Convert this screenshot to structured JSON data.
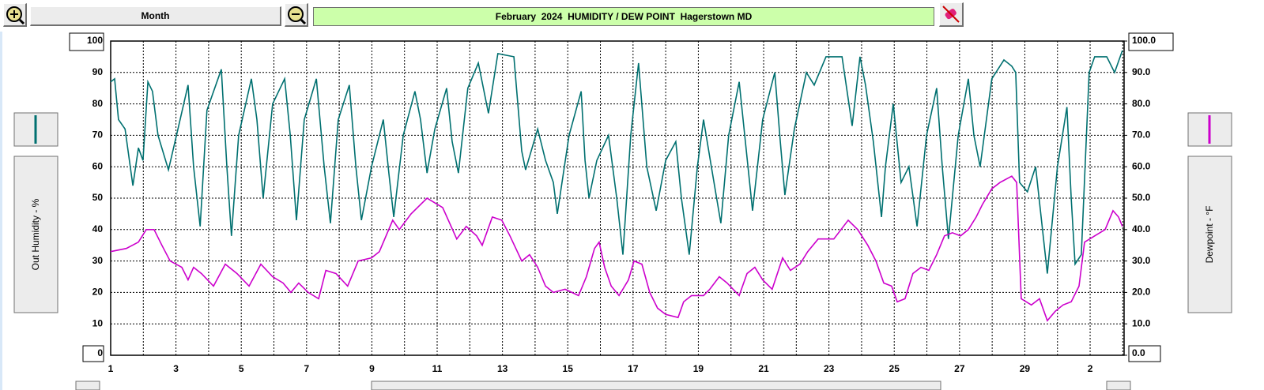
{
  "toolbar": {
    "period": "Month"
  },
  "chart_data": {
    "type": "line",
    "title": "February  2024  HUMIDITY / DEW POINT  Hagerstown MD",
    "ylabel": "Out Humidity - %",
    "y2label": "Dewpoint - °F",
    "xlim": [
      1,
      32.04
    ],
    "xticks": [
      1,
      3,
      5,
      7,
      9,
      11,
      13,
      15,
      17,
      19,
      21,
      23,
      25,
      27,
      29,
      {
        "value": 31,
        "label": "2"
      }
    ],
    "xminor": [
      2,
      4,
      6,
      8,
      10,
      12,
      14,
      16,
      18,
      20,
      22,
      24,
      26,
      28,
      30,
      32
    ],
    "ylim": [
      0,
      100
    ],
    "yticks": [
      0,
      10,
      20,
      30,
      40,
      50,
      60,
      70,
      80,
      90,
      100
    ],
    "y2lim": [
      0,
      100
    ],
    "y2ticks": [
      {
        "value": 0,
        "label": "0.0"
      },
      {
        "value": 10,
        "label": "10.0"
      },
      {
        "value": 20,
        "label": "20.0"
      },
      {
        "value": 30,
        "label": "30.0"
      },
      {
        "value": 40,
        "label": "40.0"
      },
      {
        "value": 50,
        "label": "50.0"
      },
      {
        "value": 60,
        "label": "60.0"
      },
      {
        "value": 70,
        "label": "70.0"
      },
      {
        "value": 80,
        "label": "80.0"
      },
      {
        "value": 90,
        "label": "90.0"
      },
      {
        "value": 100,
        "label": "100.0"
      }
    ],
    "grid": true,
    "series": [
      {
        "color": "#007070",
        "axis": "y",
        "x": [
          1.0,
          1.12,
          1.24,
          1.44,
          1.68,
          1.85,
          1.99,
          2.14,
          2.28,
          2.45,
          2.77,
          3.06,
          3.37,
          3.54,
          3.74,
          3.95,
          4.39,
          4.56,
          4.7,
          4.92,
          5.31,
          5.48,
          5.67,
          5.96,
          6.33,
          6.5,
          6.69,
          6.93,
          7.3,
          7.54,
          7.73,
          7.97,
          8.31,
          8.51,
          8.68,
          8.99,
          9.35,
          9.52,
          9.67,
          9.96,
          10.32,
          10.49,
          10.69,
          10.93,
          11.29,
          11.46,
          11.65,
          11.94,
          12.26,
          12.57,
          12.86,
          13.35,
          13.59,
          13.71,
          14.08,
          14.32,
          14.56,
          14.68,
          15.04,
          15.41,
          15.53,
          15.65,
          15.89,
          16.25,
          16.5,
          16.69,
          16.93,
          17.17,
          17.42,
          17.71,
          18.0,
          18.31,
          18.48,
          18.72,
          18.97,
          19.16,
          19.4,
          19.69,
          19.93,
          20.25,
          20.42,
          20.66,
          20.97,
          21.34,
          21.51,
          21.65,
          21.94,
          22.31,
          22.55,
          22.91,
          23.4,
          23.64,
          23.71,
          23.95,
          24.12,
          24.36,
          24.61,
          24.73,
          24.97,
          25.21,
          25.45,
          25.7,
          25.99,
          26.3,
          26.47,
          26.66,
          26.96,
          27.27,
          27.44,
          27.63,
          27.99,
          28.36,
          28.6,
          28.72,
          28.84,
          29.08,
          29.33,
          29.69,
          30.0,
          30.29,
          30.42,
          30.54,
          30.73,
          30.97,
          31.14,
          31.51,
          31.75,
          31.99
        ],
        "values": [
          87,
          88,
          75,
          72,
          54,
          66,
          62,
          87,
          84,
          70,
          59,
          72,
          86,
          60,
          41,
          78,
          91,
          60,
          38,
          70,
          88,
          75,
          50,
          80,
          88,
          70,
          43,
          75,
          88,
          60,
          42,
          75,
          86,
          60,
          43,
          60,
          75,
          58,
          44,
          70,
          84,
          75,
          58,
          72,
          85,
          68,
          58,
          85,
          93,
          77,
          96,
          95,
          65,
          59,
          72,
          62,
          55,
          45,
          70,
          84,
          62,
          50,
          62,
          70,
          50,
          32,
          70,
          93,
          60,
          46,
          62,
          68,
          50,
          32,
          60,
          75,
          60,
          42,
          70,
          87,
          70,
          46,
          75,
          90,
          68,
          51,
          72,
          90,
          86,
          95,
          95,
          78,
          73,
          95,
          86,
          68,
          44,
          60,
          80,
          55,
          60,
          41,
          70,
          85,
          60,
          37,
          70,
          88,
          70,
          60,
          88,
          94,
          92,
          90,
          55,
          52,
          60,
          26,
          60,
          79,
          50,
          29,
          32,
          90,
          95,
          95,
          90,
          97
        ]
      },
      {
        "color": "#cc00cc",
        "axis": "y2",
        "x": [
          1.0,
          1.48,
          1.85,
          2.09,
          2.33,
          2.57,
          2.82,
          3.18,
          3.37,
          3.54,
          3.78,
          4.15,
          4.51,
          4.87,
          5.24,
          5.6,
          5.96,
          6.28,
          6.52,
          6.76,
          7.05,
          7.37,
          7.59,
          7.9,
          8.26,
          8.58,
          8.99,
          9.23,
          9.64,
          9.84,
          10.2,
          10.69,
          11.17,
          11.6,
          11.89,
          12.21,
          12.38,
          12.69,
          12.98,
          13.23,
          13.59,
          13.83,
          14.08,
          14.32,
          14.56,
          14.92,
          15.33,
          15.57,
          15.82,
          15.96,
          16.13,
          16.33,
          16.57,
          16.86,
          17.03,
          17.27,
          17.51,
          17.75,
          18.0,
          18.38,
          18.55,
          18.79,
          19.16,
          19.35,
          19.64,
          19.88,
          20.25,
          20.49,
          20.73,
          20.97,
          21.26,
          21.58,
          21.82,
          22.11,
          22.35,
          22.67,
          23.15,
          23.59,
          23.88,
          24.19,
          24.44,
          24.68,
          24.92,
          25.09,
          25.33,
          25.57,
          25.82,
          26.06,
          26.3,
          26.54,
          26.78,
          27.03,
          27.27,
          27.51,
          27.7,
          27.99,
          28.24,
          28.6,
          28.75,
          28.89,
          29.2,
          29.45,
          29.69,
          29.93,
          30.17,
          30.42,
          30.66,
          30.83,
          31.14,
          31.46,
          31.7,
          31.87,
          31.99
        ],
        "values": [
          33,
          34,
          36,
          40,
          40,
          35,
          30,
          28,
          24,
          28,
          26,
          22,
          29,
          26,
          22,
          29,
          25,
          23,
          20,
          23,
          20,
          18,
          27,
          26,
          22,
          30,
          31,
          33,
          43,
          40,
          45,
          50,
          47,
          37,
          41,
          38,
          35,
          44,
          43,
          38,
          30,
          32,
          28,
          22,
          20,
          21,
          19,
          25,
          34,
          36,
          28,
          22,
          19,
          24,
          30,
          29,
          20,
          15,
          13,
          12,
          17,
          19,
          19,
          21,
          25,
          23,
          19,
          26,
          28,
          24,
          21,
          31,
          27,
          29,
          33,
          37,
          37,
          43,
          40,
          35,
          30,
          23,
          22,
          17,
          18,
          26,
          28,
          27,
          32,
          38,
          39,
          38,
          40,
          44,
          48,
          53,
          55,
          57,
          55,
          18,
          16,
          18,
          11,
          14,
          16,
          17,
          22,
          36,
          38,
          40,
          46,
          44,
          41
        ]
      }
    ]
  }
}
